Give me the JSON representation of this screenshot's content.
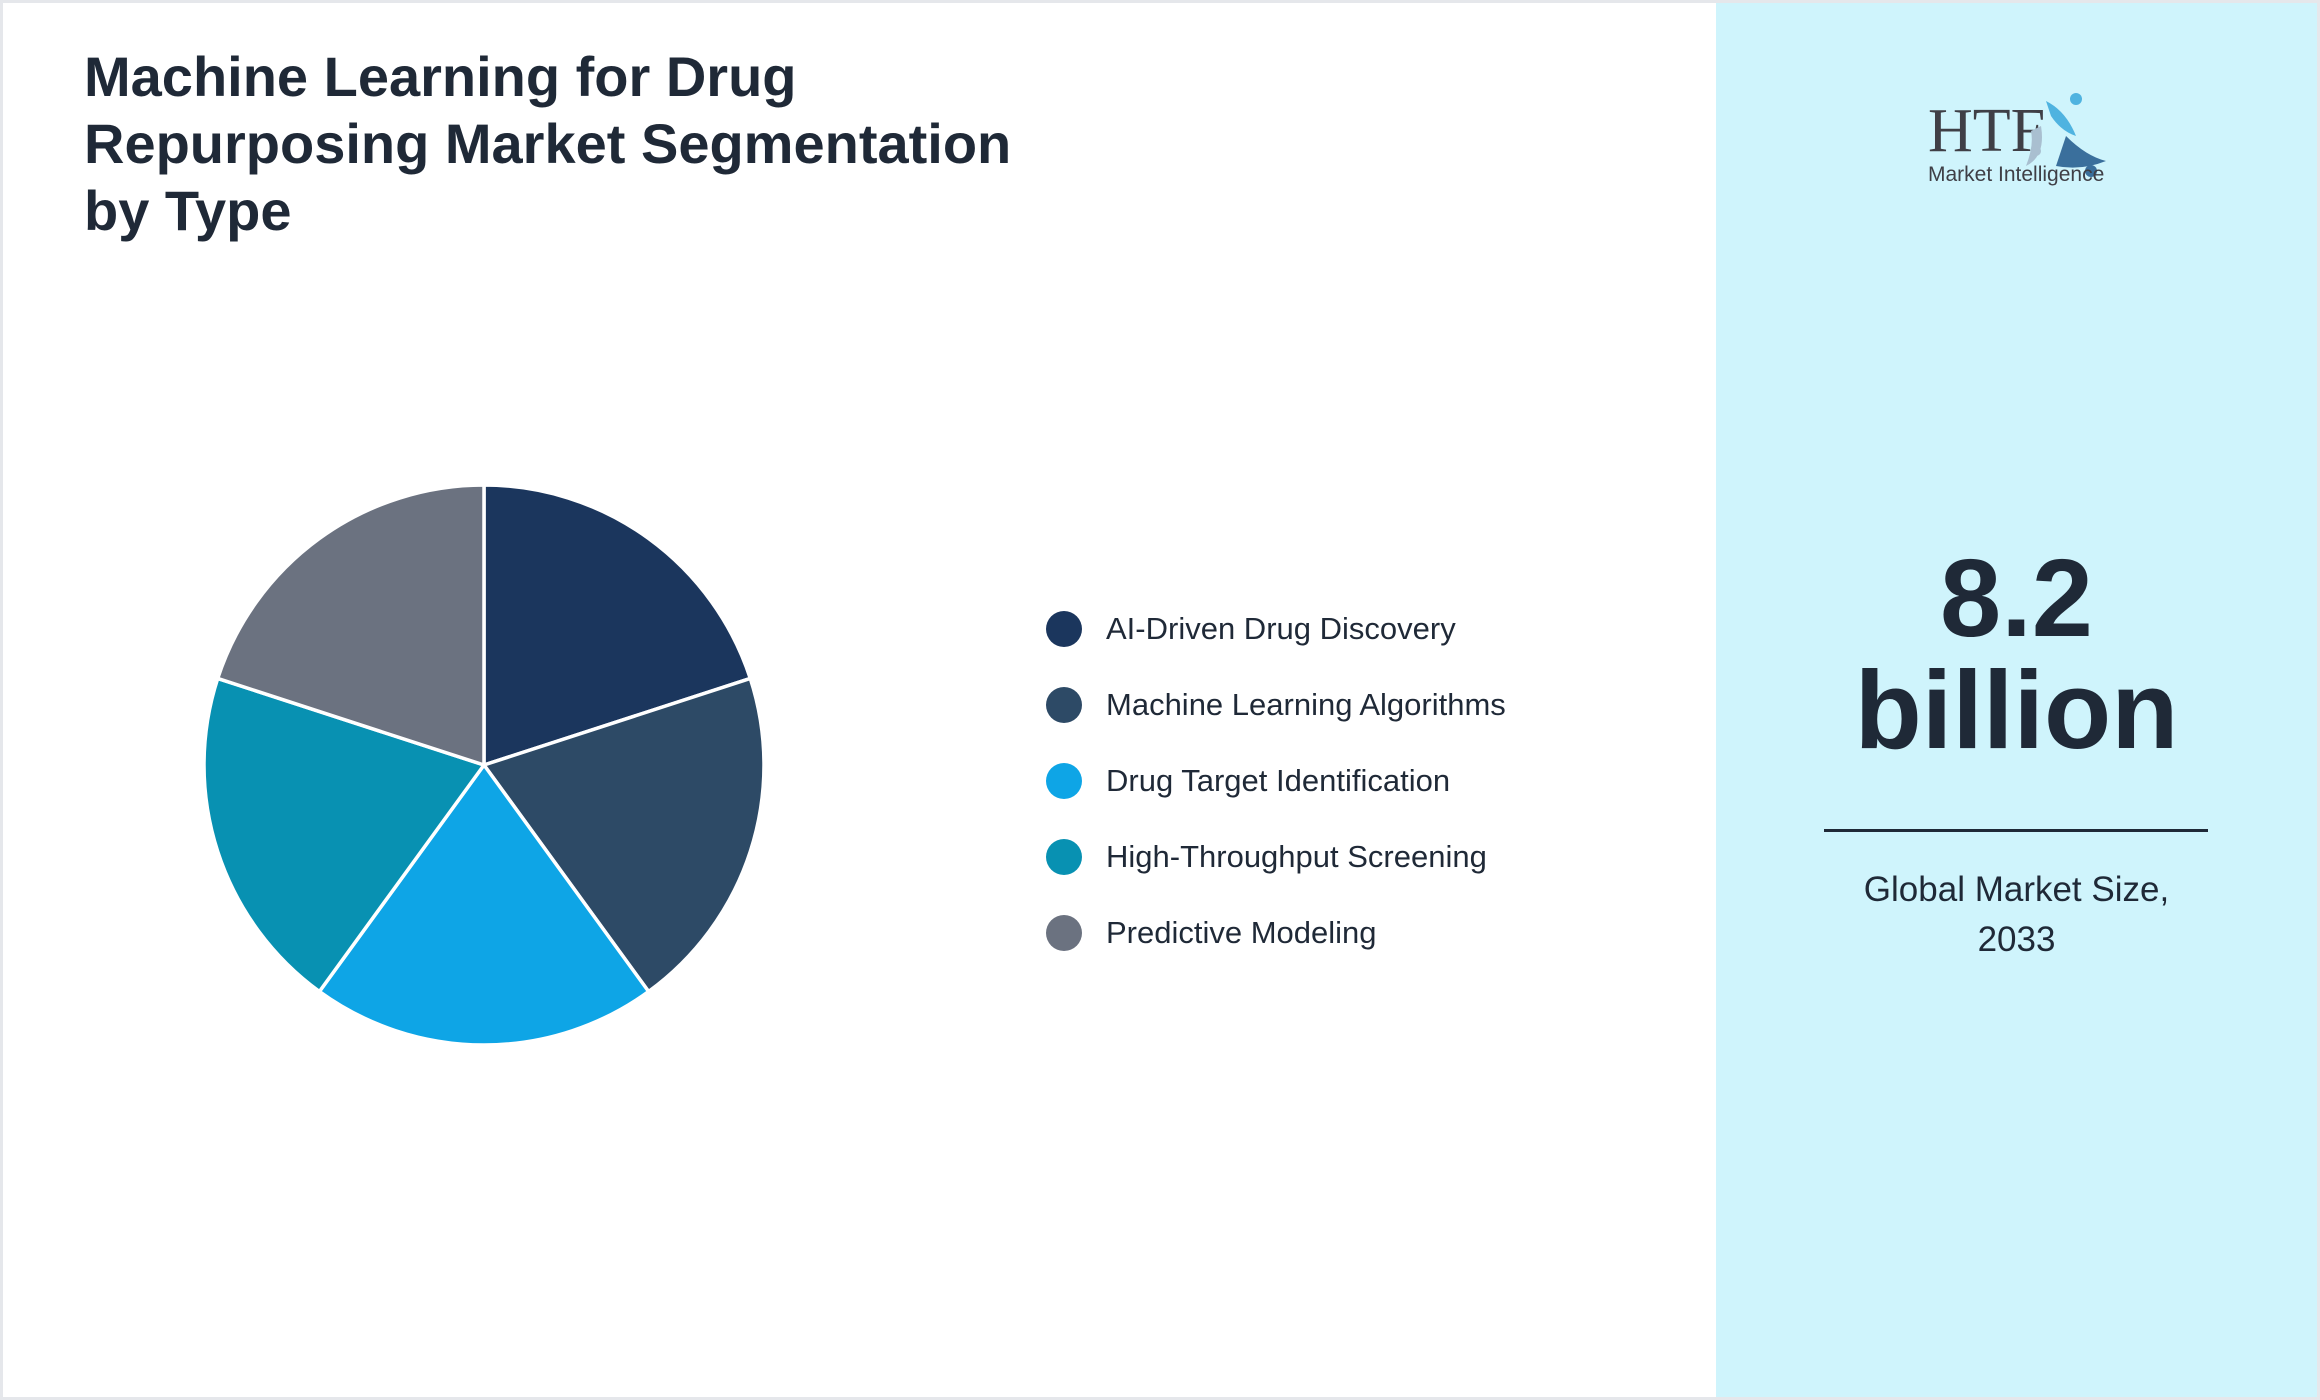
{
  "chart_data": {
    "type": "pie",
    "title": "Machine Learning for Drug Repurposing Market Segmentation by Type",
    "categories": [
      "AI-Driven Drug Discovery",
      "Machine Learning Algorithms",
      "Drug Target Identification",
      "High-Throughput Screening",
      "Predictive Modeling"
    ],
    "values": [
      20,
      20,
      20,
      20,
      20
    ],
    "colors": [
      "#1b365d",
      "#2d4a66",
      "#0ea5e6",
      "#0891b2",
      "#6b7280"
    ],
    "legend_position": "right"
  },
  "panel": {
    "logo_text": "HTF Market Intelligence",
    "value_line1": "8.2",
    "value_line2": "billion",
    "caption_line1": "Global Market Size,",
    "caption_line2": "2033"
  }
}
